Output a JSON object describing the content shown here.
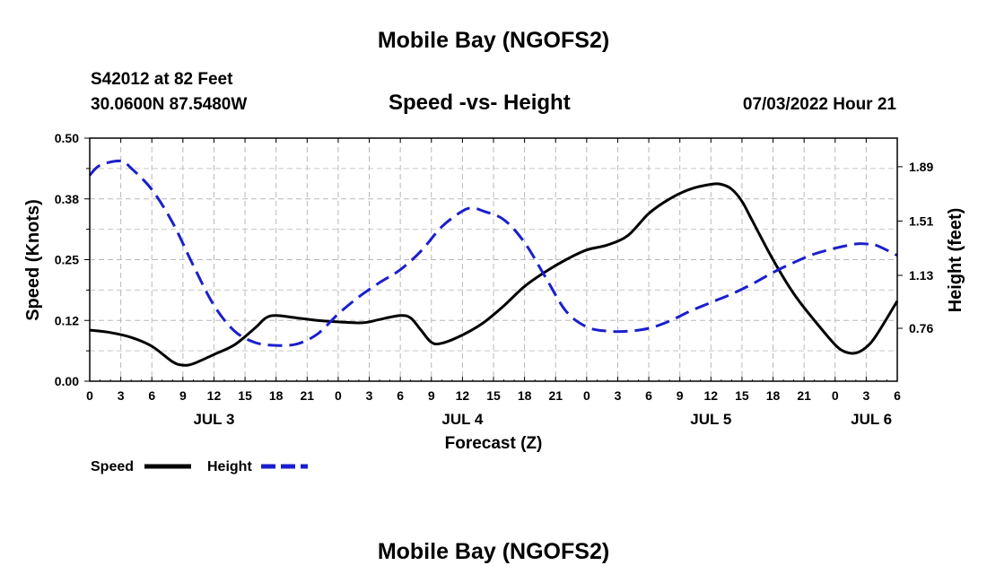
{
  "header": {
    "title": "Mobile Bay (NGOFS2)",
    "station_line": "S42012 at 82 Feet",
    "coord_line": "30.0600N  87.5480W",
    "chart_title": "Speed -vs- Height",
    "datetime": "07/03/2022 Hour 21"
  },
  "footer": {
    "title": "Mobile Bay (NGOFS2)"
  },
  "chart_data": {
    "type": "line",
    "title": "Speed -vs- Height",
    "xlabel": "Forecast (Z)",
    "ylabel": "Speed (Knots)",
    "ylabel_right": "Height (feet)",
    "grid": true,
    "x_hours_range": [
      0,
      78
    ],
    "x_ticks": [
      {
        "h": 0,
        "label": "0"
      },
      {
        "h": 3,
        "label": "3"
      },
      {
        "h": 6,
        "label": "6"
      },
      {
        "h": 9,
        "label": "9"
      },
      {
        "h": 12,
        "label": "12"
      },
      {
        "h": 15,
        "label": "15"
      },
      {
        "h": 18,
        "label": "18"
      },
      {
        "h": 21,
        "label": "21"
      },
      {
        "h": 24,
        "label": "0"
      },
      {
        "h": 27,
        "label": "3"
      },
      {
        "h": 30,
        "label": "6"
      },
      {
        "h": 33,
        "label": "9"
      },
      {
        "h": 36,
        "label": "12"
      },
      {
        "h": 39,
        "label": "15"
      },
      {
        "h": 42,
        "label": "18"
      },
      {
        "h": 45,
        "label": "21"
      },
      {
        "h": 48,
        "label": "0"
      },
      {
        "h": 51,
        "label": "3"
      },
      {
        "h": 54,
        "label": "6"
      },
      {
        "h": 57,
        "label": "9"
      },
      {
        "h": 60,
        "label": "12"
      },
      {
        "h": 63,
        "label": "15"
      },
      {
        "h": 66,
        "label": "18"
      },
      {
        "h": 69,
        "label": "21"
      },
      {
        "h": 72,
        "label": "0"
      },
      {
        "h": 75,
        "label": "3"
      },
      {
        "h": 78,
        "label": "6"
      }
    ],
    "date_labels": [
      {
        "h": 12,
        "label": "JUL 3"
      },
      {
        "h": 36,
        "label": "JUL 4"
      },
      {
        "h": 60,
        "label": "JUL 5"
      },
      {
        "h": 75.5,
        "label": "JUL 6"
      }
    ],
    "y_left": {
      "range": [
        0,
        0.5
      ],
      "ticks": [
        0.0,
        0.125,
        0.25,
        0.375,
        0.5
      ],
      "tick_labels": [
        "0.00",
        "0.12",
        "0.25",
        "0.38",
        "0.50"
      ]
    },
    "y_right": {
      "range": [
        0.39,
        2.09
      ],
      "ticks": [
        0.76,
        1.13,
        1.51,
        1.89
      ],
      "tick_labels": [
        "0.76",
        "1.13",
        "1.51",
        "1.89"
      ]
    },
    "series": [
      {
        "name": "Speed",
        "axis": "left",
        "color": "#000000",
        "style": "solid",
        "points": [
          [
            0,
            0.105
          ],
          [
            2,
            0.1
          ],
          [
            4,
            0.09
          ],
          [
            6,
            0.072
          ],
          [
            8,
            0.04
          ],
          [
            9,
            0.033
          ],
          [
            10,
            0.036
          ],
          [
            12,
            0.055
          ],
          [
            14,
            0.075
          ],
          [
            16,
            0.11
          ],
          [
            17,
            0.13
          ],
          [
            18,
            0.135
          ],
          [
            20,
            0.13
          ],
          [
            22,
            0.125
          ],
          [
            24,
            0.122
          ],
          [
            26,
            0.12
          ],
          [
            27,
            0.122
          ],
          [
            28,
            0.127
          ],
          [
            30,
            0.135
          ],
          [
            31,
            0.13
          ],
          [
            32,
            0.105
          ],
          [
            33,
            0.08
          ],
          [
            34,
            0.078
          ],
          [
            36,
            0.095
          ],
          [
            38,
            0.12
          ],
          [
            40,
            0.155
          ],
          [
            42,
            0.195
          ],
          [
            44,
            0.225
          ],
          [
            46,
            0.25
          ],
          [
            48,
            0.27
          ],
          [
            50,
            0.28
          ],
          [
            52,
            0.3
          ],
          [
            54,
            0.345
          ],
          [
            56,
            0.375
          ],
          [
            58,
            0.395
          ],
          [
            60,
            0.405
          ],
          [
            61,
            0.405
          ],
          [
            62,
            0.395
          ],
          [
            63,
            0.37
          ],
          [
            64,
            0.33
          ],
          [
            66,
            0.25
          ],
          [
            68,
            0.18
          ],
          [
            70,
            0.125
          ],
          [
            72,
            0.075
          ],
          [
            73,
            0.06
          ],
          [
            74,
            0.058
          ],
          [
            75,
            0.07
          ],
          [
            76,
            0.095
          ],
          [
            78,
            0.165
          ]
        ]
      },
      {
        "name": "Height",
        "axis": "right",
        "color": "#1a1fcc",
        "style": "dashed",
        "points": [
          [
            0,
            1.83
          ],
          [
            1,
            1.9
          ],
          [
            3,
            1.93
          ],
          [
            4,
            1.88
          ],
          [
            6,
            1.73
          ],
          [
            8,
            1.5
          ],
          [
            10,
            1.2
          ],
          [
            12,
            0.92
          ],
          [
            14,
            0.74
          ],
          [
            16,
            0.66
          ],
          [
            18,
            0.64
          ],
          [
            20,
            0.65
          ],
          [
            22,
            0.72
          ],
          [
            24,
            0.86
          ],
          [
            26,
            0.98
          ],
          [
            28,
            1.08
          ],
          [
            30,
            1.17
          ],
          [
            32,
            1.3
          ],
          [
            34,
            1.47
          ],
          [
            36,
            1.58
          ],
          [
            37,
            1.6
          ],
          [
            38,
            1.58
          ],
          [
            40,
            1.52
          ],
          [
            42,
            1.36
          ],
          [
            44,
            1.12
          ],
          [
            46,
            0.88
          ],
          [
            48,
            0.77
          ],
          [
            50,
            0.74
          ],
          [
            52,
            0.74
          ],
          [
            54,
            0.76
          ],
          [
            56,
            0.81
          ],
          [
            58,
            0.88
          ],
          [
            60,
            0.94
          ],
          [
            62,
            1.0
          ],
          [
            64,
            1.07
          ],
          [
            66,
            1.15
          ],
          [
            68,
            1.22
          ],
          [
            70,
            1.28
          ],
          [
            72,
            1.32
          ],
          [
            74,
            1.35
          ],
          [
            75,
            1.35
          ],
          [
            76,
            1.34
          ],
          [
            78,
            1.27
          ]
        ]
      }
    ],
    "legend": [
      {
        "label": "Speed",
        "color": "#000000",
        "style": "solid"
      },
      {
        "label": "Height",
        "color": "#1a1fcc",
        "style": "dashed"
      }
    ]
  }
}
